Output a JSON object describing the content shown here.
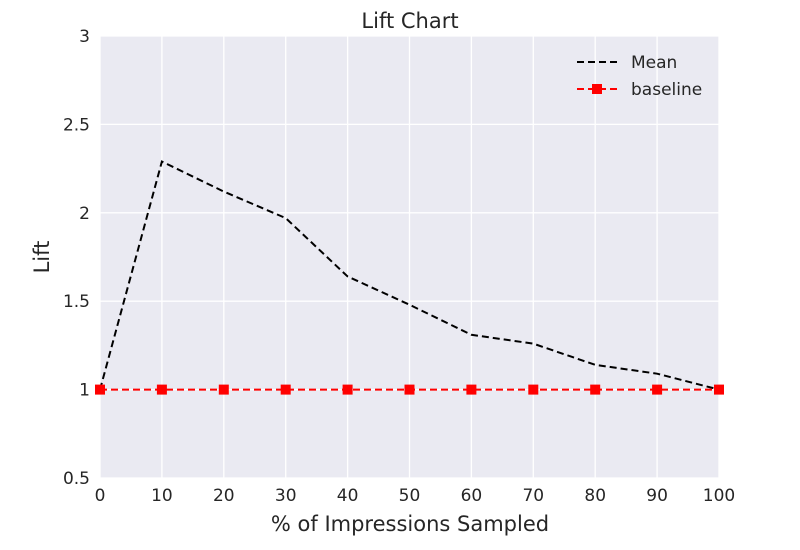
{
  "chart_data": {
    "type": "line",
    "title": "Lift Chart",
    "xlabel": "% of Impressions Sampled",
    "ylabel": "Lift",
    "x": [
      0,
      10,
      20,
      30,
      40,
      50,
      60,
      70,
      80,
      90,
      100
    ],
    "xlim": [
      0,
      100
    ],
    "ylim": [
      0.5,
      3
    ],
    "xticks": [
      0,
      10,
      20,
      30,
      40,
      50,
      60,
      70,
      80,
      90,
      100
    ],
    "xtick_labels": [
      "0",
      "10",
      "20",
      "30",
      "40",
      "50",
      "60",
      "70",
      "80",
      "90",
      "100"
    ],
    "yticks": [
      0.5,
      1,
      1.5,
      2,
      2.5,
      3
    ],
    "ytick_labels": [
      "0.5",
      "1",
      "1.5",
      "2",
      "2.5",
      "3"
    ],
    "grid": true,
    "legend_position": "top-right",
    "series": [
      {
        "name": "Mean",
        "values": [
          1.0,
          2.29,
          2.12,
          1.97,
          1.64,
          1.48,
          1.31,
          1.26,
          1.14,
          1.09,
          1.0
        ],
        "color": "#000000",
        "line_style": "dashed",
        "marker": "none"
      },
      {
        "name": "baseline",
        "values": [
          1,
          1,
          1,
          1,
          1,
          1,
          1,
          1,
          1,
          1,
          1
        ],
        "color": "#ff0000",
        "line_style": "dashed",
        "marker": "square"
      }
    ],
    "colors": {
      "plot_background": "#eaeaf2",
      "grid": "#ffffff",
      "text": "#262626"
    }
  }
}
